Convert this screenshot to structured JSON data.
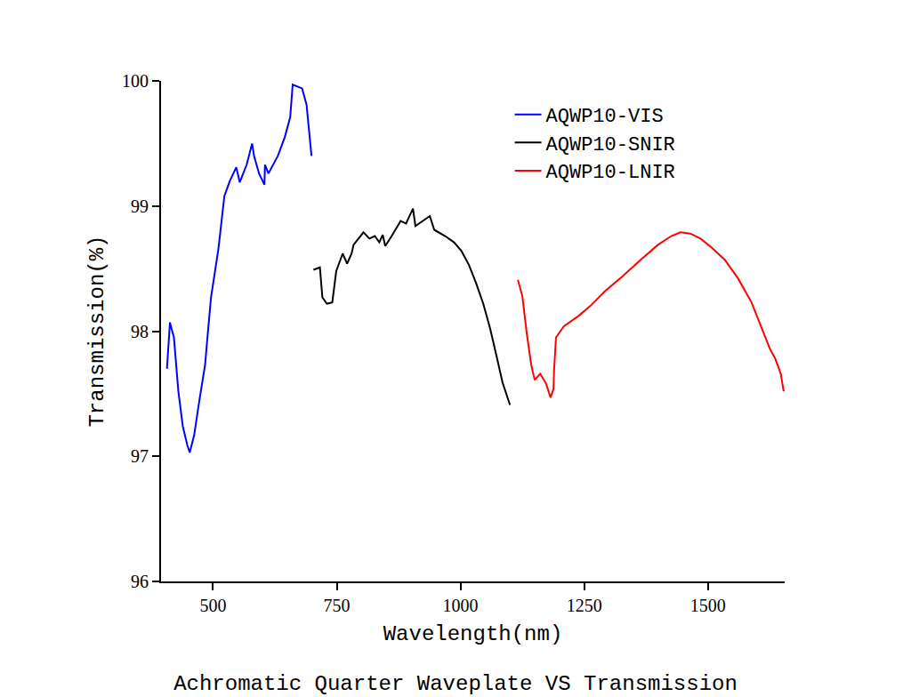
{
  "chart_data": {
    "type": "line",
    "title": "Achromatic Quarter Waveplate VS Transmission",
    "x_label": "Wavelength(nm)",
    "y_label": "Transmission(%)",
    "xlim": [
      395,
      1655
    ],
    "xticks": [
      500,
      750,
      1000,
      1250,
      1500
    ],
    "ylim": [
      96,
      100
    ],
    "yticks": [
      96,
      97,
      98,
      99,
      100
    ],
    "grid": false,
    "legend": "upper right",
    "series": [
      {
        "name": "AQWP10-VIS",
        "color": "#0000ff",
        "x": [
          407,
          413,
          421,
          430,
          439,
          448,
          453,
          462,
          471,
          484,
          489,
          496,
          511,
          523,
          534,
          547,
          554,
          568,
          579,
          583,
          593,
          604,
          605,
          612,
          631,
          645,
          656,
          661,
          680,
          689,
          699
        ],
        "values": [
          97.7,
          98.07,
          97.95,
          97.52,
          97.24,
          97.09,
          97.03,
          97.17,
          97.41,
          97.73,
          97.96,
          98.27,
          98.66,
          99.08,
          99.2,
          99.31,
          99.19,
          99.33,
          99.5,
          99.4,
          99.26,
          99.17,
          99.33,
          99.26,
          99.4,
          99.55,
          99.71,
          99.97,
          99.94,
          99.81,
          99.4
        ]
      },
      {
        "name": "AQWP10-SNIR",
        "color": "#000000",
        "x": [
          703,
          716,
          721,
          730,
          741,
          749,
          762,
          771,
          780,
          784,
          804,
          816,
          827,
          836,
          843,
          848,
          861,
          879,
          890,
          904,
          909,
          924,
          938,
          947,
          969,
          987,
          1002,
          1017,
          1031,
          1046,
          1060,
          1073,
          1085,
          1100
        ],
        "values": [
          98.49,
          98.51,
          98.27,
          98.22,
          98.23,
          98.48,
          98.62,
          98.54,
          98.62,
          98.69,
          98.79,
          98.74,
          98.76,
          98.71,
          98.77,
          98.68,
          98.76,
          98.88,
          98.86,
          98.98,
          98.84,
          98.88,
          98.92,
          98.81,
          98.76,
          98.71,
          98.64,
          98.53,
          98.39,
          98.22,
          98.02,
          97.8,
          97.59,
          97.41
        ]
      },
      {
        "name": "AQWP10-LNIR",
        "color": "#ff0000",
        "x": [
          1116,
          1125,
          1134,
          1143,
          1150,
          1161,
          1173,
          1182,
          1188,
          1189,
          1193,
          1209,
          1238,
          1262,
          1292,
          1328,
          1364,
          1399,
          1426,
          1444,
          1464,
          1485,
          1507,
          1534,
          1561,
          1588,
          1609,
          1625,
          1636,
          1647,
          1653
        ],
        "values": [
          98.41,
          98.28,
          97.98,
          97.73,
          97.61,
          97.66,
          97.58,
          97.47,
          97.54,
          97.68,
          97.95,
          98.04,
          98.12,
          98.2,
          98.32,
          98.44,
          98.57,
          98.69,
          98.76,
          98.79,
          98.78,
          98.74,
          98.67,
          98.57,
          98.42,
          98.23,
          98.02,
          97.86,
          97.78,
          97.66,
          97.52
        ]
      }
    ]
  }
}
